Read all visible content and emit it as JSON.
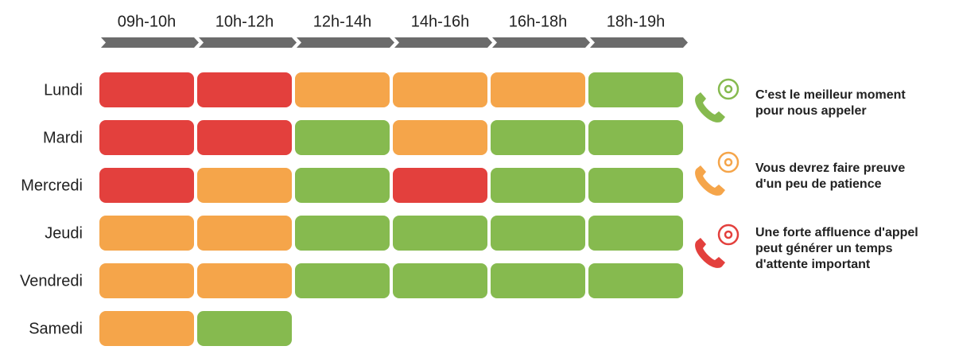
{
  "time_slots": [
    "09h-10h",
    "10h-12h",
    "12h-14h",
    "14h-16h",
    "16h-18h",
    "18h-19h"
  ],
  "days": [
    {
      "label": "Lundi",
      "cells": [
        "#e3403d",
        "#e3403d",
        "#f5a54a",
        "#f5a54a",
        "#f5a54a",
        "#86ba4f"
      ]
    },
    {
      "label": "Mardi",
      "cells": [
        "#e3403d",
        "#e3403d",
        "#86ba4f",
        "#f5a54a",
        "#86ba4f",
        "#86ba4f"
      ]
    },
    {
      "label": "Mercredi",
      "cells": [
        "#e3403d",
        "#f5a54a",
        "#86ba4f",
        "#e3403d",
        "#86ba4f",
        "#86ba4f"
      ]
    },
    {
      "label": "Jeudi",
      "cells": [
        "#f5a54a",
        "#f5a54a",
        "#86ba4f",
        "#86ba4f",
        "#86ba4f",
        "#86ba4f"
      ]
    },
    {
      "label": "Vendredi",
      "cells": [
        "#f5a54a",
        "#f5a54a",
        "#86ba4f",
        "#86ba4f",
        "#86ba4f",
        "#86ba4f"
      ]
    },
    {
      "label": "Samedi",
      "cells": [
        "#f5a54a",
        "#86ba4f"
      ]
    }
  ],
  "legend": [
    {
      "color": "#86ba4f",
      "lines": [
        "C'est le meilleur moment",
        "pour nous appeler"
      ]
    },
    {
      "color": "#f5a54a",
      "lines": [
        "Vous devrez faire preuve",
        "d'un peu de patience"
      ]
    },
    {
      "color": "#e3403d",
      "lines": [
        "Une forte affluence d'appel",
        "peut générer un temps",
        "d'attente important"
      ]
    }
  ]
}
